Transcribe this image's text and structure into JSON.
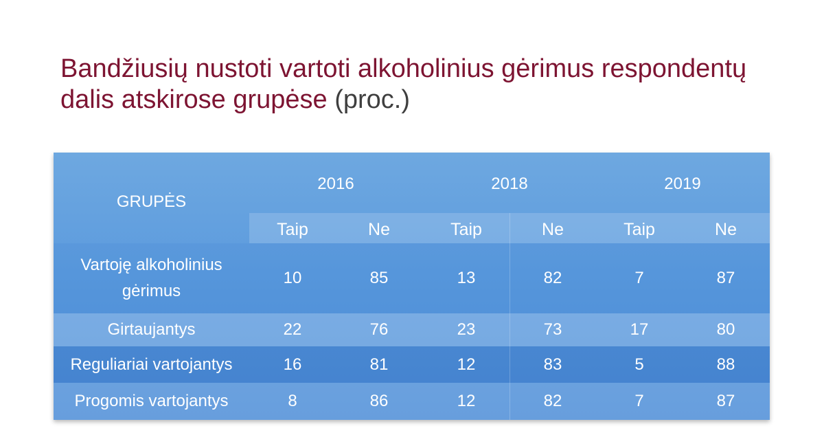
{
  "title": {
    "main": "Bandžiusių nustoti vartoti alkoholinius gėrimus respondentų dalis atskirose grupėse",
    "suffix": "(proc.)"
  },
  "table": {
    "group_header": "GRUPĖS",
    "years": [
      "2016",
      "2018",
      "2019"
    ],
    "subheaders": [
      "Taip",
      "Ne",
      "Taip",
      "Ne",
      "Taip",
      "Ne"
    ],
    "rows": [
      {
        "label": "Vartoję alkoholinius gėrimus",
        "values": [
          "10",
          "85",
          "13",
          "82",
          "7",
          "87"
        ]
      },
      {
        "label": "Girtaujantys",
        "values": [
          "22",
          "76",
          "23",
          "73",
          "17",
          "80"
        ]
      },
      {
        "label": "Reguliariai vartojantys",
        "values": [
          "16",
          "81",
          "12",
          "83",
          "5",
          "88"
        ]
      },
      {
        "label": "Progomis vartojantys",
        "values": [
          "8",
          "86",
          "12",
          "82",
          "7",
          "87"
        ]
      }
    ]
  }
}
